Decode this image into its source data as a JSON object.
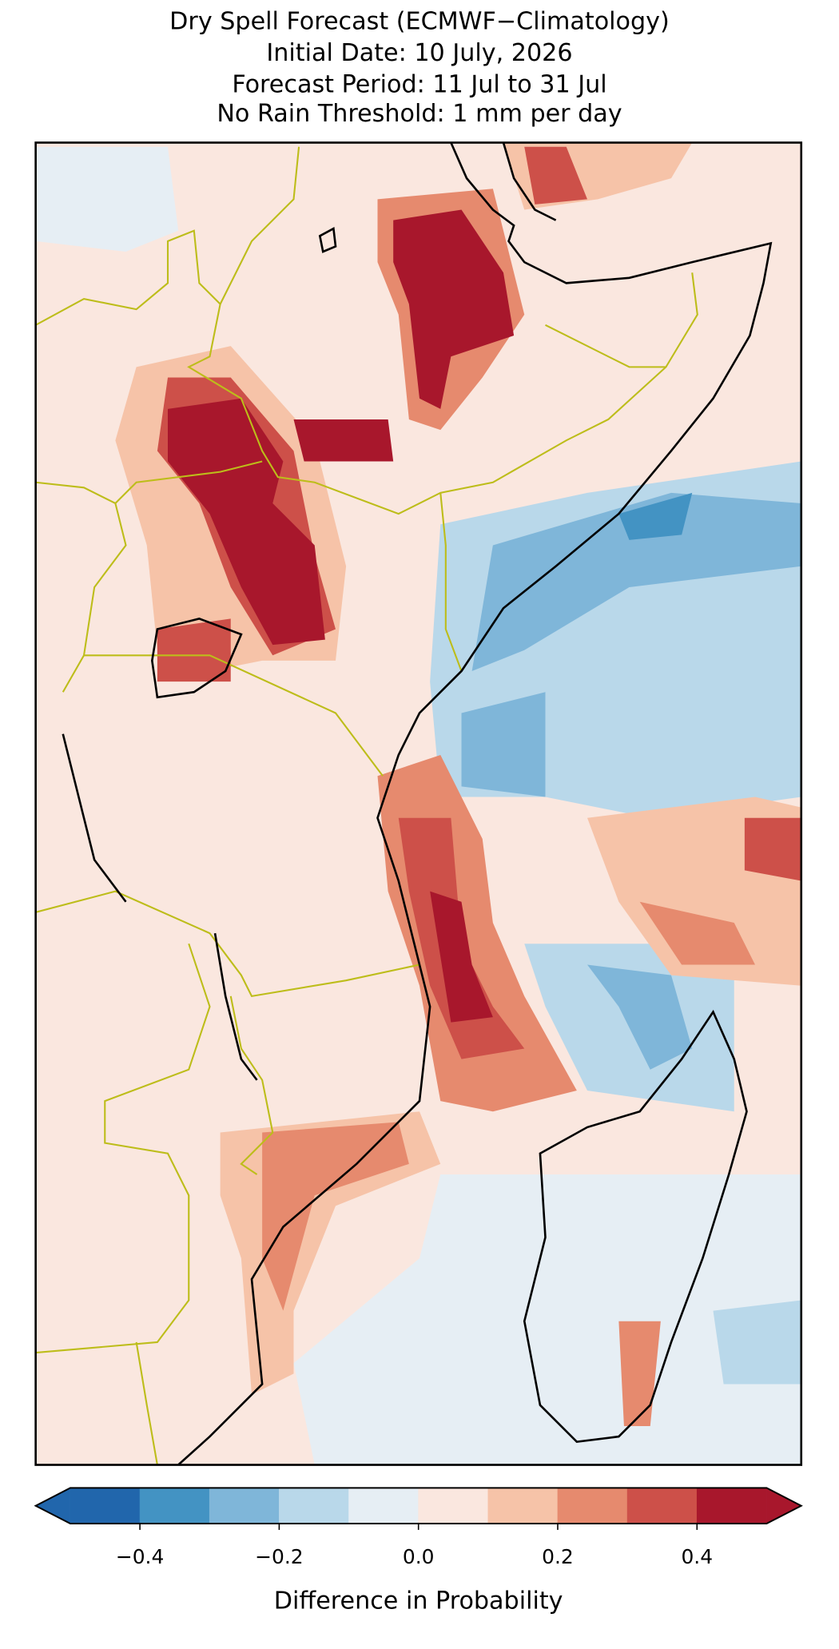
{
  "chart_data": {
    "type": "heatmap",
    "title": "Dry Spell Forecast (ECMWF−Climatology)",
    "subtitles": [
      "Initial Date: 10 July, 2026",
      "Forecast Period: 11 Jul to 31 Jul",
      "No Rain Threshold: 1 mm per day"
    ],
    "colorbar": {
      "label": "Difference in Probability",
      "levels": [
        -0.5,
        -0.4,
        -0.3,
        -0.2,
        -0.1,
        0,
        0.1,
        0.2,
        0.3,
        0.4,
        0.5
      ],
      "colors": [
        "#2166ac",
        "#4393c3",
        "#7fb6d9",
        "#b9d8ea",
        "#e6eef4",
        "#fae7df",
        "#f6c3a8",
        "#e68a6e",
        "#cd5049",
        "#a8172c"
      ],
      "extend": "both",
      "ticks": [
        {
          "value": -0.4,
          "label": "−0.4"
        },
        {
          "value": -0.2,
          "label": "−0.2"
        },
        {
          "value": 0,
          "label": "0.0"
        },
        {
          "value": 0.2,
          "label": "0.2"
        },
        {
          "value": 0.4,
          "label": "0.4"
        }
      ]
    }
  }
}
